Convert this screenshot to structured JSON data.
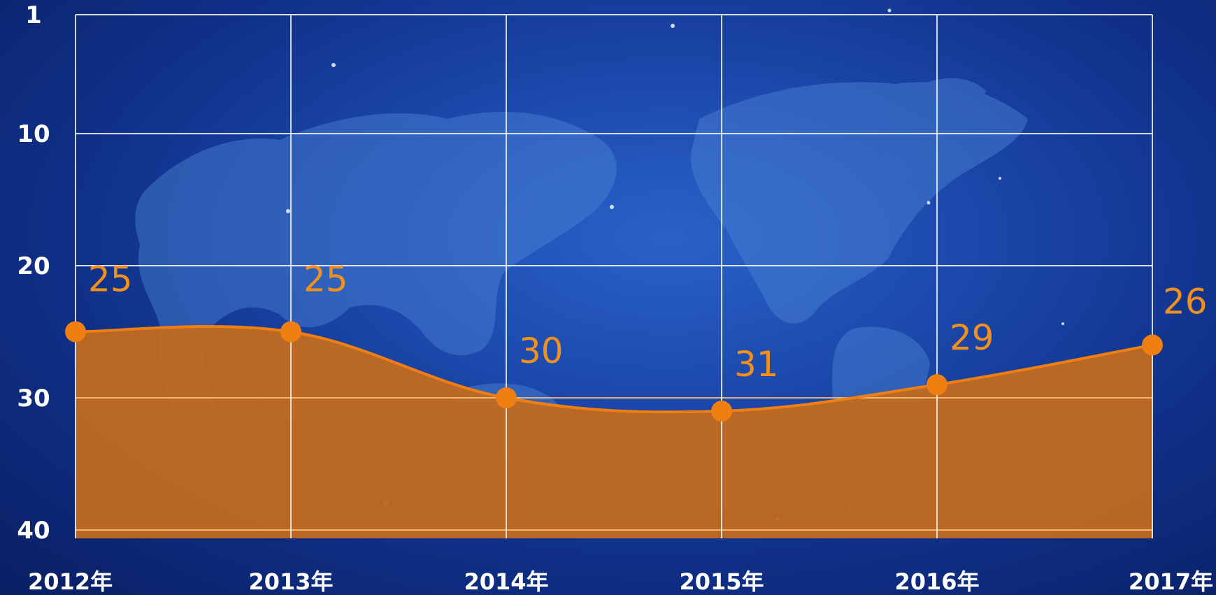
{
  "chart_data": {
    "type": "area",
    "y_inverted": true,
    "ylim": [
      1,
      40
    ],
    "yticks": [
      "1",
      "10",
      "20",
      "30",
      "40"
    ],
    "ytick_values": [
      1,
      10,
      20,
      30,
      40
    ],
    "categories": [
      "2012年",
      "2013年",
      "2014年",
      "2015年",
      "2016年",
      "2017年"
    ],
    "series": [
      {
        "values": [
          25,
          25,
          30,
          31,
          29,
          26
        ]
      }
    ],
    "data_labels": [
      "25",
      "25",
      "30",
      "31",
      "29",
      "26"
    ],
    "grid": true,
    "title": "",
    "xlabel": "",
    "ylabel": ""
  },
  "colors": {
    "series": "#f07f12",
    "fill": "#c26a1f",
    "grid": "#ffffff",
    "grid_over_area": "#ffc27a",
    "label": "#f2901c"
  },
  "background": {
    "icon": "world-map-icon"
  }
}
